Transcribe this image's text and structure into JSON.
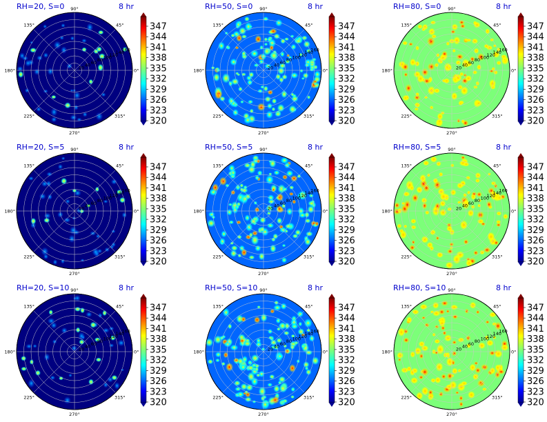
{
  "figure": {
    "time_label": "8 hr",
    "colormap": "jet",
    "colorbar_ticks": [
      "347",
      "344",
      "341",
      "338",
      "335",
      "332",
      "329",
      "326",
      "323",
      "320"
    ],
    "color_range": [
      320,
      350
    ],
    "angle_labels": [
      "90°",
      "45°",
      "0°",
      "315°",
      "270°",
      "225°",
      "180°",
      "135°"
    ],
    "radial_labels": [
      "20",
      "40",
      "60",
      "80",
      "100",
      "120",
      "140",
      "160"
    ]
  },
  "chart_data": [
    {
      "type": "heatmap",
      "title": "RH=20, S=0",
      "projection": "polar",
      "background": "#000080",
      "cmap": "jet",
      "vmin": 320,
      "vmax": 350
    },
    {
      "type": "heatmap",
      "title": "RH=50, S=0",
      "projection": "polar",
      "background": "#0066ff",
      "cmap": "jet",
      "vmin": 320,
      "vmax": 350
    },
    {
      "type": "heatmap",
      "title": "RH=80, S=0",
      "projection": "polar",
      "background": "#7cff79",
      "cmap": "jet",
      "vmin": 320,
      "vmax": 350
    },
    {
      "type": "heatmap",
      "title": "RH=20, S=5",
      "projection": "polar",
      "background": "#000080",
      "cmap": "jet",
      "vmin": 320,
      "vmax": 350
    },
    {
      "type": "heatmap",
      "title": "RH=50, S=5",
      "projection": "polar",
      "background": "#0066ff",
      "cmap": "jet",
      "vmin": 320,
      "vmax": 350
    },
    {
      "type": "heatmap",
      "title": "RH=80, S=5",
      "projection": "polar",
      "background": "#7cff79",
      "cmap": "jet",
      "vmin": 320,
      "vmax": 350
    },
    {
      "type": "heatmap",
      "title": "RH=20, S=10",
      "projection": "polar",
      "background": "#000080",
      "cmap": "jet",
      "vmin": 320,
      "vmax": 350
    },
    {
      "type": "heatmap",
      "title": "RH=50, S=10",
      "projection": "polar",
      "background": "#0066ff",
      "cmap": "jet",
      "vmin": 320,
      "vmax": 350
    },
    {
      "type": "heatmap",
      "title": "RH=80, S=10",
      "projection": "polar",
      "background": "#7cff79",
      "cmap": "jet",
      "vmin": 320,
      "vmax": 350
    }
  ]
}
